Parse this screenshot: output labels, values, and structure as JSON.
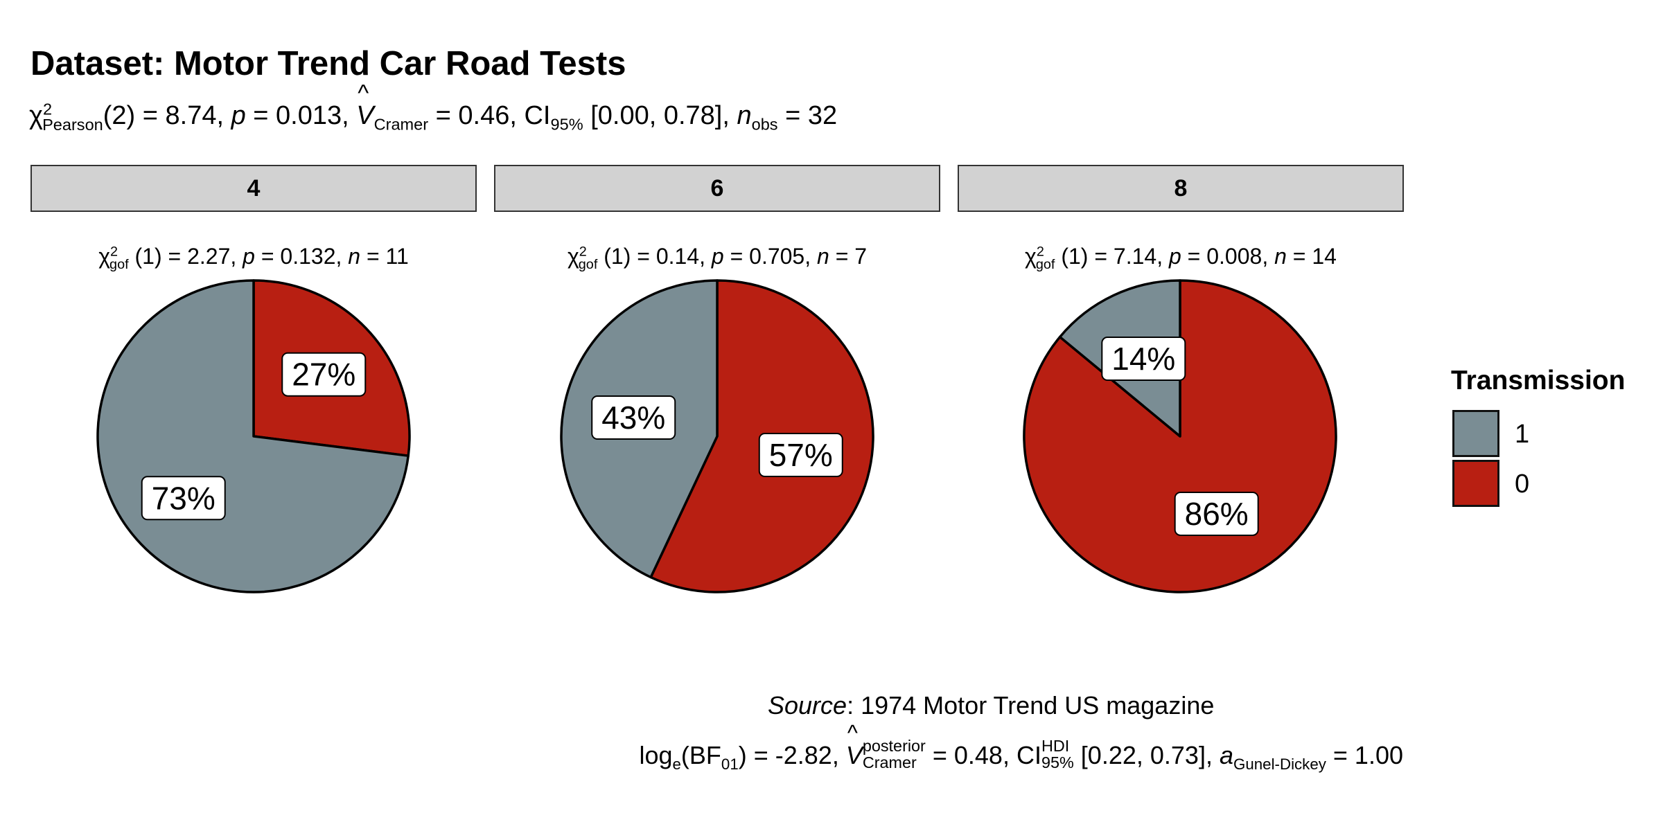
{
  "title": "Dataset: Motor Trend Car Road Tests",
  "subtitle": {
    "stat_prefix": "χ",
    "stat_sup": "2",
    "stat_sub": "Pearson",
    "stat_df": "(2) = 8.74, ",
    "p_label": "p",
    "p_value": " = 0.013, ",
    "v_label": "V",
    "v_hat": "^",
    "v_sub": "Cramer",
    "v_value": " = 0.46, CI",
    "ci_sub": "95%",
    "ci_value": " [0.00, 0.78], ",
    "n_label": "n",
    "n_sub": "obs",
    "n_value": " = 32"
  },
  "legend": {
    "title": "Transmission",
    "items": [
      {
        "label": "1",
        "color": "#7a8d94"
      },
      {
        "label": "0",
        "color": "#b81f12"
      }
    ]
  },
  "caption": {
    "source_label": "Source",
    "source_text": ": 1974 Motor Trend US magazine"
  },
  "caption2": {
    "log_text": "log",
    "log_sub": "e",
    "bf_text": "(BF",
    "bf_sub": "01",
    "bf_value": ") = -2.82, ",
    "v_label": "V",
    "v_sup": "posterior",
    "v_sub": "Cramer",
    "v_value": " = 0.48, CI",
    "ci_sup": "HDI",
    "ci_sub": "95%",
    "ci_value": " [0.22, 0.73], ",
    "a_label": "a",
    "a_sub": "Gunel-Dickey",
    "a_value": " = 1.00"
  },
  "chart_data": {
    "type": "pie",
    "series_name": "Transmission",
    "categories": [
      "1",
      "0"
    ],
    "colors": {
      "1": "#7a8d94",
      "0": "#b81f12"
    },
    "panels": [
      {
        "strip": "4",
        "stat_sub": "gof",
        "stat_sup": "2",
        "stat_text": " (1) = 2.27,  ",
        "p_text": " = 0.132,  ",
        "n_text": " = 11",
        "slices": [
          {
            "category": "0",
            "value": 27,
            "label": "27%"
          },
          {
            "category": "1",
            "value": 73,
            "label": "73%"
          }
        ]
      },
      {
        "strip": "6",
        "stat_sub": "gof",
        "stat_sup": "2",
        "stat_text": " (1) = 0.14,  ",
        "p_text": " = 0.705,  ",
        "n_text": " = 7",
        "slices": [
          {
            "category": "0",
            "value": 57,
            "label": "57%"
          },
          {
            "category": "1",
            "value": 43,
            "label": "43%"
          }
        ]
      },
      {
        "strip": "8",
        "stat_sub": "gof",
        "stat_sup": "2",
        "stat_text": " (1) = 7.14,  ",
        "p_text": " = 0.008,  ",
        "n_text": " = 14",
        "slices": [
          {
            "category": "0",
            "value": 86,
            "label": "86%"
          },
          {
            "category": "1",
            "value": 14,
            "label": "14%"
          }
        ]
      }
    ]
  }
}
